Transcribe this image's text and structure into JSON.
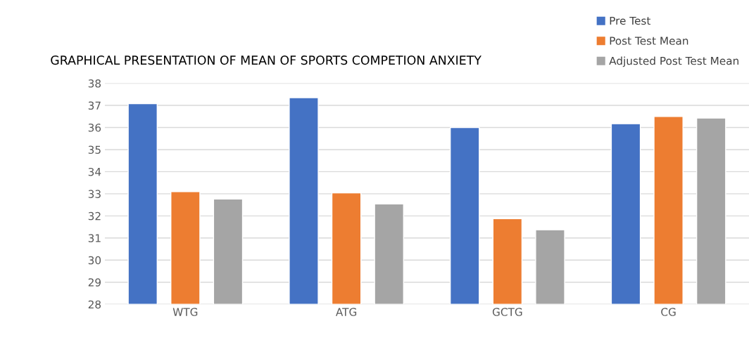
{
  "chart_data": {
    "type": "bar",
    "title": "GRAPHICAL PRESENTATION OF MEAN OF SPORTS COMPETION ANXIETY",
    "categories": [
      "WTG",
      "ATG",
      "GCTG",
      "CG"
    ],
    "series": [
      {
        "name": "Pre Test",
        "color": "#4472c4",
        "values": [
          37.08,
          37.35,
          36.0,
          36.17
        ]
      },
      {
        "name": "Post Test Mean",
        "color": "#ed7d31",
        "values": [
          33.1,
          33.04,
          31.87,
          36.5
        ]
      },
      {
        "name": "Adjusted Post Test Mean",
        "color": "#a5a5a5",
        "values": [
          32.76,
          32.54,
          31.37,
          36.43
        ]
      }
    ],
    "ylim": [
      28,
      38
    ],
    "yticks": [
      28,
      29,
      30,
      31,
      32,
      33,
      34,
      35,
      36,
      37,
      38
    ],
    "grid": "y",
    "legend": "top right"
  }
}
